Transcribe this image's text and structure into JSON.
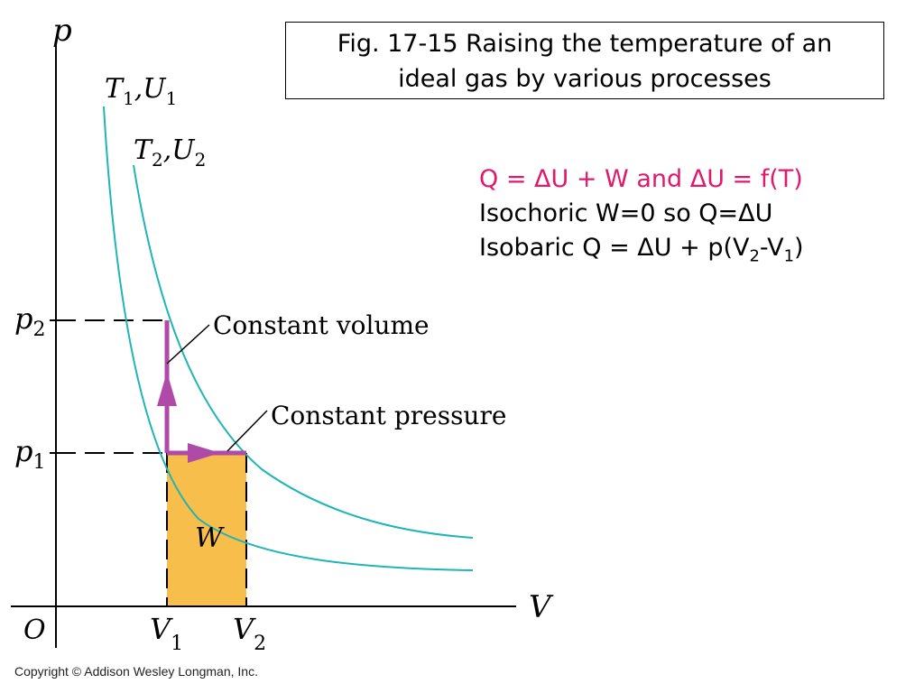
{
  "caption": {
    "line1": "Fig. 17-15 Raising the temperature of an",
    "line2": "ideal gas by various processes"
  },
  "equations": {
    "line1": "Q = ΔU + W and ΔU = f(T)",
    "line2": "Isochoric W=0 so Q=ΔU",
    "line3_prefix": "Isobaric Q = ΔU + p(V",
    "line3_sub1": "2",
    "line3_mid": "-V",
    "line3_sub2": "1",
    "line3_suffix": ")"
  },
  "diagram": {
    "axis_p": "p",
    "axis_V": "V",
    "origin": "O",
    "p2_base": "p",
    "p2_sub": "2",
    "p1_base": "p",
    "p1_sub": "1",
    "V1_base": "V",
    "V1_sub": "1",
    "V2_base": "V",
    "V2_sub": "2",
    "iso1_T": "T",
    "iso1_T_sub": "1",
    "iso1_U": ",U",
    "iso1_U_sub": "1",
    "iso2_T": "T",
    "iso2_T_sub": "2",
    "iso2_U": ",U",
    "iso2_U_sub": "2",
    "constant_volume": "Constant volume",
    "constant_pressure": "Constant pressure",
    "work": "W"
  },
  "colors": {
    "isotherm": "#1fb5b5",
    "process": "#b04aa8",
    "work_fill": "#f8be4c",
    "equation_highlight": "#e0196d"
  },
  "copyright": "Copyright © Addison Wesley Longman, Inc."
}
